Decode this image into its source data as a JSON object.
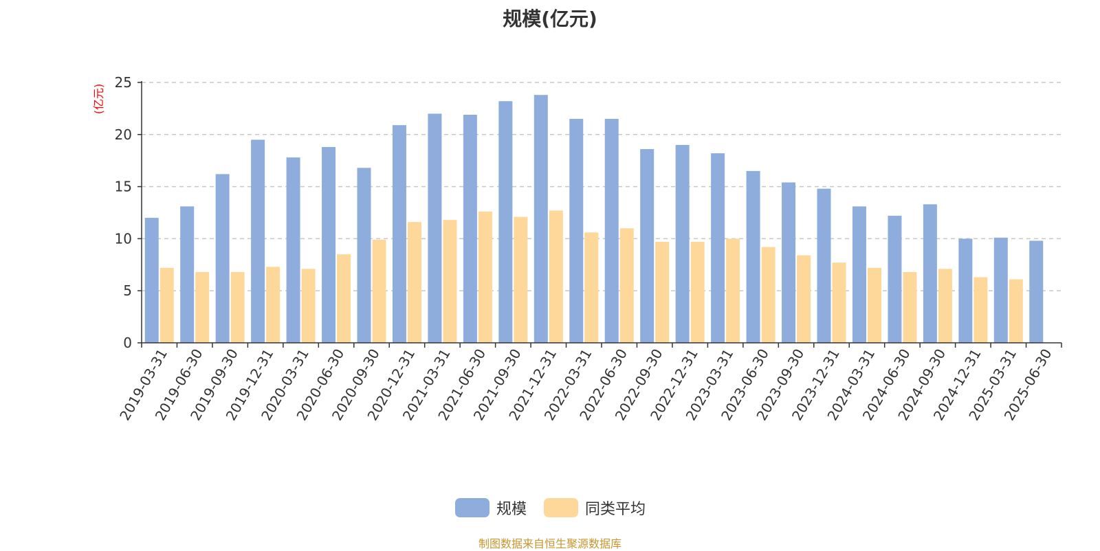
{
  "chart_data": {
    "type": "bar",
    "title": "规模(亿元)",
    "ylabel": "(亿元)",
    "ylim": [
      0,
      25
    ],
    "yticks": [
      0,
      5,
      10,
      15,
      20,
      25
    ],
    "grid": true,
    "legend_position": "bottom",
    "categories": [
      "2019-03-31",
      "2019-06-30",
      "2019-09-30",
      "2019-12-31",
      "2020-03-31",
      "2020-06-30",
      "2020-09-30",
      "2020-12-31",
      "2021-03-31",
      "2021-06-30",
      "2021-09-30",
      "2021-12-31",
      "2022-03-31",
      "2022-06-30",
      "2022-09-30",
      "2022-12-31",
      "2023-03-31",
      "2023-06-30",
      "2023-09-30",
      "2023-12-31",
      "2024-03-31",
      "2024-06-30",
      "2024-09-30",
      "2024-12-31",
      "2025-03-31",
      "2025-06-30"
    ],
    "series": [
      {
        "name": "规模",
        "color": "#8eaddc",
        "values": [
          12.0,
          13.1,
          16.2,
          19.5,
          17.8,
          18.8,
          16.8,
          20.9,
          22.0,
          21.9,
          23.2,
          23.8,
          21.5,
          21.5,
          18.6,
          19.0,
          18.2,
          16.5,
          15.4,
          14.8,
          13.1,
          12.2,
          13.3,
          10.0,
          10.1,
          9.8
        ]
      },
      {
        "name": "同类平均",
        "color": "#fdd89a",
        "values": [
          7.2,
          6.8,
          6.8,
          7.3,
          7.1,
          8.5,
          9.9,
          11.6,
          11.8,
          12.6,
          12.1,
          12.7,
          10.6,
          11.0,
          9.7,
          9.7,
          10.0,
          9.2,
          8.4,
          7.7,
          7.2,
          6.8,
          7.1,
          6.3,
          6.1,
          null
        ]
      }
    ]
  },
  "unit_color": "#ff0000",
  "source_note": "制图数据来自恒生聚源数据库"
}
